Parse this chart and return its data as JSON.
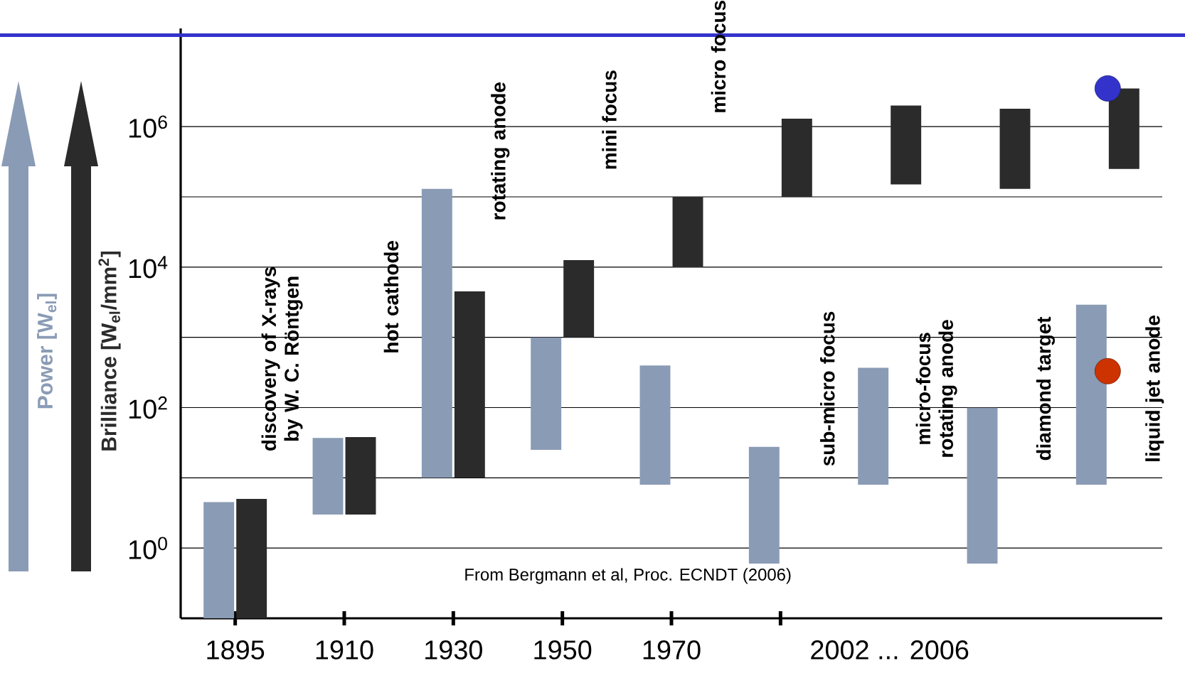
{
  "chart_data": {
    "type": "bar",
    "categories": [
      "discovery of X-rays by W. C. Röntgen",
      "hot cathode",
      "rotating anode",
      "mini focus",
      "micro focus",
      "sub-micro focus",
      "micro-focus rotating anode",
      "diamond target",
      "liquid jet anode"
    ],
    "series": [
      {
        "name": "Power [W$_{el}$]",
        "color": "#8a9bb5",
        "base": [
          0.1,
          3,
          10,
          25,
          8,
          0.6,
          8,
          0.6,
          8
        ],
        "values": [
          4.4,
          34,
          130000,
          975,
          390,
          27,
          360,
          99,
          2900
        ]
      },
      {
        "name": "Brilliance [W$_{el}$/mm$^{2}$]",
        "color": "#2b2b2b",
        "base": [
          0.1,
          3,
          10,
          1000,
          10000,
          100000,
          150000,
          130000,
          250000
        ],
        "values": [
          4.9,
          35,
          4500,
          11600,
          90000,
          1200000,
          1850000,
          1670000,
          3250000
        ]
      },
      {
        "type": "scatter",
        "color": "#cc3300",
        "values": [
          null,
          null,
          null,
          null,
          null,
          null,
          null,
          null,
          330
        ]
      },
      {
        "type": "scatter",
        "color": "#3333cc",
        "values": [
          null,
          null,
          null,
          null,
          null,
          null,
          null,
          null,
          3500000
        ]
      }
    ],
    "marker": "circle",
    "log": true,
    "ylim": [
      0.1,
      25000000
    ],
    "yticks": [
      {
        "value": 1,
        "label": "10$^{0}$"
      },
      {
        "value": 10,
        "label": null
      },
      {
        "value": 100,
        "label": "10$^{2}$"
      },
      {
        "value": 1000,
        "label": null
      },
      {
        "value": 10000,
        "label": "10$^{4}$"
      },
      {
        "value": 100000,
        "label": null
      },
      {
        "value": 1000000,
        "label": "10$^{6}$"
      }
    ],
    "grid": "y",
    "legend": "left",
    "ref_lines": [
      {
        "axis": "y",
        "value": 20000000,
        "color": "#3333cc"
      }
    ],
    "annotations": [
      "1895",
      "1910",
      "1930",
      "1950",
      "1970",
      "2002 ... 2006",
      "From Bergmann et al, Proc. ECNDT (2006)"
    ]
  }
}
